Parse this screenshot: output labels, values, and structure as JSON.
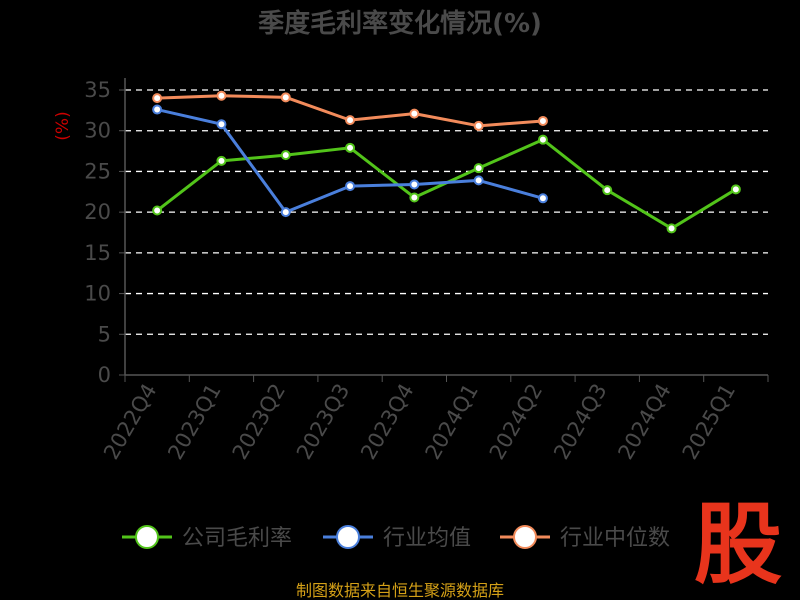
{
  "chart_data": {
    "type": "line",
    "title": "季度毛利率变化情况(%)",
    "ylabel": "(%)",
    "xlabel": "",
    "categories": [
      "2022Q4",
      "2023Q1",
      "2023Q2",
      "2023Q3",
      "2023Q4",
      "2024Q1",
      "2024Q2",
      "2024Q3",
      "2024Q4",
      "2025Q1"
    ],
    "ylim": [
      0,
      35
    ],
    "yticks": [
      0,
      5,
      10,
      15,
      20,
      25,
      30,
      35
    ],
    "grid": "horizontal dashed",
    "legend_position": "bottom",
    "series": [
      {
        "name": "公司毛利率",
        "color": "#52c41a",
        "values": [
          20.2,
          26.3,
          27.0,
          27.9,
          21.8,
          25.4,
          28.9,
          22.7,
          18.0,
          22.8
        ]
      },
      {
        "name": "行业均值",
        "color": "#4a7fdc",
        "values": [
          32.6,
          30.8,
          20.0,
          23.2,
          23.4,
          23.9,
          21.7,
          null,
          null,
          null
        ]
      },
      {
        "name": "行业中位数",
        "color": "#f28b5b",
        "values": [
          34.0,
          34.3,
          34.1,
          31.3,
          32.1,
          30.6,
          31.2,
          null,
          null,
          null
        ]
      }
    ]
  },
  "source": "制图数据来自恒生聚源数据库",
  "logo_text": "股"
}
